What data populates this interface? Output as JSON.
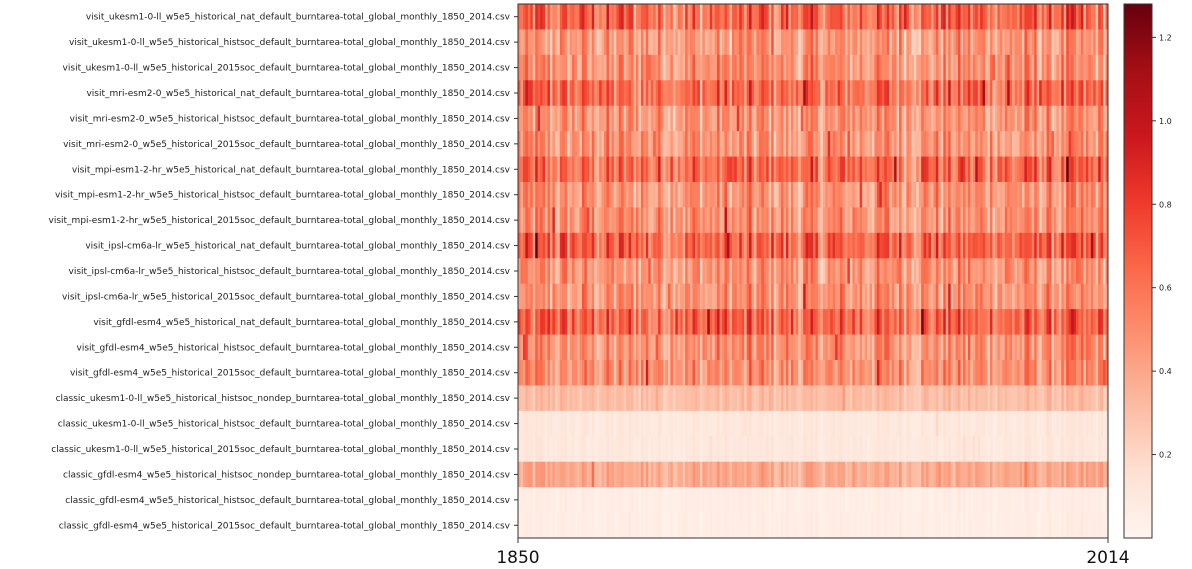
{
  "chart_data": {
    "type": "heatmap",
    "title": "",
    "xlabel": "",
    "ylabel": "",
    "x_range": [
      1850,
      2014
    ],
    "x_tick_labels": [
      "1850",
      "2014"
    ],
    "rows": [
      {
        "label": "visit_ukesm1-0-ll_w5e5_historical_nat_default_burntarea-total_global_monthly_1850_2014.csv",
        "mean": 0.62,
        "spread": 0.32
      },
      {
        "label": "visit_ukesm1-0-ll_w5e5_historical_histsoc_default_burntarea-total_global_monthly_1850_2014.csv",
        "mean": 0.45,
        "spread": 0.25
      },
      {
        "label": "visit_ukesm1-0-ll_w5e5_historical_2015soc_default_burntarea-total_global_monthly_1850_2014.csv",
        "mean": 0.47,
        "spread": 0.25
      },
      {
        "label": "visit_mri-esm2-0_w5e5_historical_nat_default_burntarea-total_global_monthly_1850_2014.csv",
        "mean": 0.62,
        "spread": 0.3
      },
      {
        "label": "visit_mri-esm2-0_w5e5_historical_histsoc_default_burntarea-total_global_monthly_1850_2014.csv",
        "mean": 0.45,
        "spread": 0.24
      },
      {
        "label": "visit_mri-esm2-0_w5e5_historical_2015soc_default_burntarea-total_global_monthly_1850_2014.csv",
        "mean": 0.46,
        "spread": 0.24
      },
      {
        "label": "visit_mpi-esm1-2-hr_w5e5_historical_nat_default_burntarea-total_global_monthly_1850_2014.csv",
        "mean": 0.62,
        "spread": 0.3
      },
      {
        "label": "visit_mpi-esm1-2-hr_w5e5_historical_histsoc_default_burntarea-total_global_monthly_1850_2014.csv",
        "mean": 0.47,
        "spread": 0.24
      },
      {
        "label": "visit_mpi-esm1-2-hr_w5e5_historical_2015soc_default_burntarea-total_global_monthly_1850_2014.csv",
        "mean": 0.48,
        "spread": 0.24
      },
      {
        "label": "visit_ipsl-cm6a-lr_w5e5_historical_nat_default_burntarea-total_global_monthly_1850_2014.csv",
        "mean": 0.64,
        "spread": 0.3
      },
      {
        "label": "visit_ipsl-cm6a-lr_w5e5_historical_histsoc_default_burntarea-total_global_monthly_1850_2014.csv",
        "mean": 0.46,
        "spread": 0.24
      },
      {
        "label": "visit_ipsl-cm6a-lr_w5e5_historical_2015soc_default_burntarea-total_global_monthly_1850_2014.csv",
        "mean": 0.47,
        "spread": 0.24
      },
      {
        "label": "visit_gfdl-esm4_w5e5_historical_nat_default_burntarea-total_global_monthly_1850_2014.csv",
        "mean": 0.64,
        "spread": 0.3
      },
      {
        "label": "visit_gfdl-esm4_w5e5_historical_histsoc_default_burntarea-total_global_monthly_1850_2014.csv",
        "mean": 0.48,
        "spread": 0.24
      },
      {
        "label": "visit_gfdl-esm4_w5e5_historical_2015soc_default_burntarea-total_global_monthly_1850_2014.csv",
        "mean": 0.48,
        "spread": 0.24
      },
      {
        "label": "classic_ukesm1-0-ll_w5e5_historical_histsoc_nondep_burntarea-total_global_monthly_1850_2014.csv",
        "mean": 0.3,
        "spread": 0.08
      },
      {
        "label": "classic_ukesm1-0-ll_w5e5_historical_histsoc_default_burntarea-total_global_monthly_1850_2014.csv",
        "mean": 0.1,
        "spread": 0.04
      },
      {
        "label": "classic_ukesm1-0-ll_w5e5_historical_2015soc_default_burntarea-total_global_monthly_1850_2014.csv",
        "mean": 0.1,
        "spread": 0.04
      },
      {
        "label": "classic_gfdl-esm4_w5e5_historical_histsoc_nondep_burntarea-total_global_monthly_1850_2014.csv",
        "mean": 0.38,
        "spread": 0.12
      },
      {
        "label": "classic_gfdl-esm4_w5e5_historical_histsoc_default_burntarea-total_global_monthly_1850_2014.csv",
        "mean": 0.06,
        "spread": 0.03
      },
      {
        "label": "classic_gfdl-esm4_w5e5_historical_2015soc_default_burntarea-total_global_monthly_1850_2014.csv",
        "mean": 0.06,
        "spread": 0.03
      }
    ],
    "colorbar": {
      "colormap": "Reds",
      "range": [
        0,
        1.28
      ],
      "ticks": [
        0.2,
        0.4,
        0.6,
        0.8,
        1.0,
        1.2
      ],
      "tick_labels": [
        "0.2",
        "0.4",
        "0.6",
        "0.8",
        "1.0",
        "1.2"
      ]
    },
    "grid": false,
    "legend": "colorbar-right"
  }
}
